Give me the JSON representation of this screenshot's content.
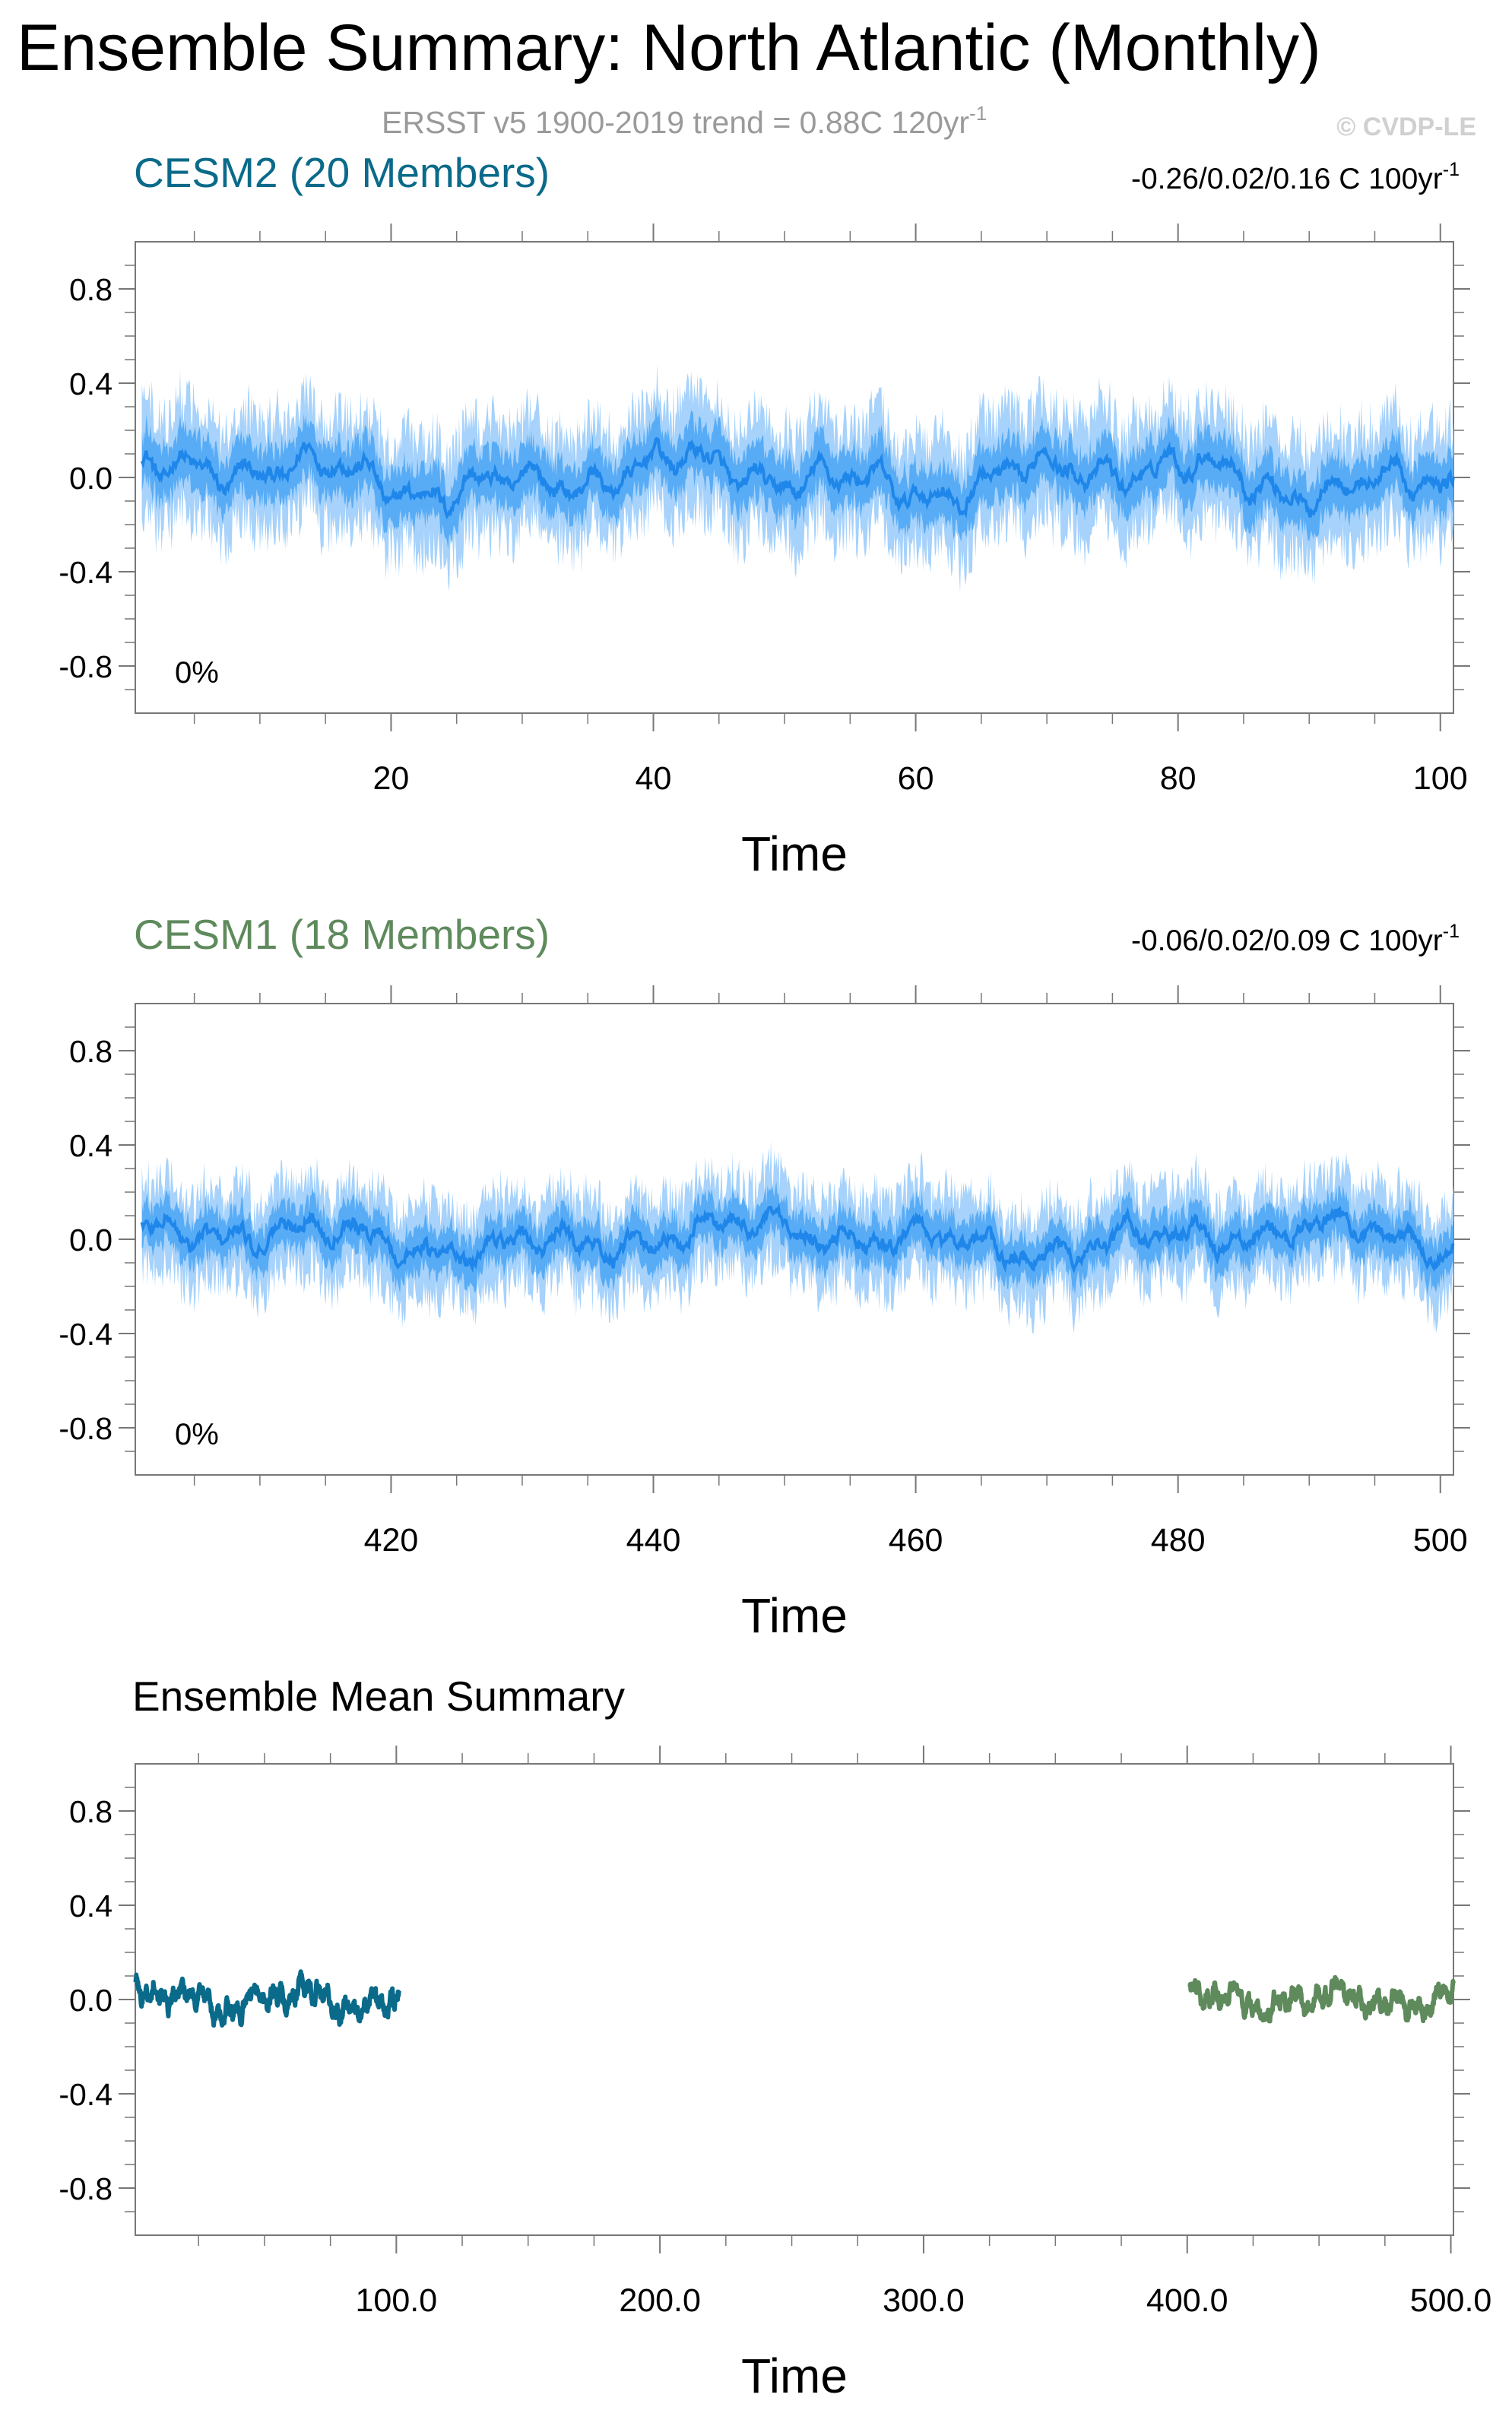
{
  "title": "Ensemble Summary: North Atlantic (Monthly)",
  "subtitle": "ERSST v5 1900-2019 trend = 0.88C 120yr",
  "subtitle_exponent": "-1",
  "watermark": "© CVDP-LE",
  "colors": {
    "cesm2": "#0a6a8a",
    "cesm1": "#5e8a5c",
    "band_outer": "#a6d2fb",
    "band_inner": "#4aa6f5",
    "mean_line": "#1f86ea",
    "subtitle": "#9a9a9a",
    "watermark": "#d0d0d0",
    "axis": "#777777"
  },
  "chart_data": [
    {
      "type": "area",
      "title": "CESM2 (20 Members)",
      "trend_text": "-0.26/0.02/0.16 C 100yr",
      "trend_exponent": "-1",
      "annotation": "0%",
      "xlabel": "Time",
      "ylabel": "",
      "xlim": [
        0.5,
        101
      ],
      "ylim": [
        -1.0,
        1.0
      ],
      "xticks": [
        20,
        40,
        60,
        80,
        100
      ],
      "xtick_labels": [
        "20",
        "40",
        "60",
        "80",
        "100"
      ],
      "yticks": [
        0.8,
        0.4,
        0.0,
        -0.4,
        -0.8
      ],
      "ytick_labels": [
        "0.8",
        "0.4",
        "0.0",
        "-0.4",
        "-0.8"
      ],
      "x_start": 1,
      "x_end": 101,
      "n_points": 1200,
      "series": [
        {
          "name": "ensemble mean",
          "wave": [
            [
              0.05,
              3.0,
              0.0
            ],
            [
              0.05,
              7.5,
              1.1
            ],
            [
              0.04,
              23.0,
              2.3
            ],
            [
              0.03,
              41.0,
              0.7
            ]
          ]
        },
        {
          "name": "inner range",
          "half_width": 0.11
        },
        {
          "name": "outer range",
          "half_width": 0.23
        }
      ]
    },
    {
      "type": "area",
      "title": "CESM1 (18 Members)",
      "trend_text": "-0.06/0.02/0.09 C 100yr",
      "trend_exponent": "-1",
      "annotation": "0%",
      "xlabel": "Time",
      "ylabel": "",
      "xlim": [
        400.5,
        501
      ],
      "ylim": [
        -1.0,
        1.0
      ],
      "xticks": [
        420,
        440,
        460,
        480,
        500
      ],
      "xtick_labels": [
        "420",
        "440",
        "460",
        "480",
        "500"
      ],
      "yticks": [
        0.8,
        0.4,
        0.0,
        -0.4,
        -0.8
      ],
      "ytick_labels": [
        "0.8",
        "0.4",
        "0.0",
        "-0.4",
        "-0.8"
      ],
      "x_start": 401,
      "x_end": 501,
      "n_points": 1200,
      "series": [
        {
          "name": "ensemble mean",
          "wave": [
            [
              0.04,
              2.5,
              0.4
            ],
            [
              0.04,
              6.5,
              1.9
            ],
            [
              0.03,
              19.0,
              0.2
            ],
            [
              0.03,
              37.0,
              2.8
            ]
          ]
        },
        {
          "name": "inner range",
          "half_width": 0.09
        },
        {
          "name": "outer range",
          "half_width": 0.19
        }
      ]
    },
    {
      "type": "line",
      "title": "Ensemble Mean Summary",
      "xlabel": "Time",
      "ylabel": "",
      "xlim": [
        1,
        501
      ],
      "ylim": [
        -1.0,
        1.0
      ],
      "xticks": [
        100,
        200,
        300,
        400,
        500
      ],
      "xtick_labels": [
        "100.0",
        "200.0",
        "300.0",
        "400.0",
        "500.0"
      ],
      "yticks": [
        0.8,
        0.4,
        0.0,
        -0.4,
        -0.8
      ],
      "ytick_labels": [
        "0.8",
        "0.4",
        "0.0",
        "-0.4",
        "-0.8"
      ],
      "series": [
        {
          "name": "CESM2",
          "x_start": 1,
          "x_end": 101,
          "n_points": 600,
          "wave": [
            [
              0.035,
              2.0,
              0.3
            ],
            [
              0.03,
              4.5,
              1.4
            ],
            [
              0.03,
              11.0,
              2.2
            ],
            [
              0.025,
              29.0,
              0.9
            ]
          ]
        },
        {
          "name": "CESM1",
          "x_start": 401,
          "x_end": 501,
          "n_points": 600,
          "wave": [
            [
              0.03,
              2.0,
              1.0
            ],
            [
              0.025,
              5.0,
              2.4
            ],
            [
              0.025,
              13.0,
              0.1
            ],
            [
              0.02,
              31.0,
              1.7
            ]
          ]
        }
      ]
    }
  ]
}
